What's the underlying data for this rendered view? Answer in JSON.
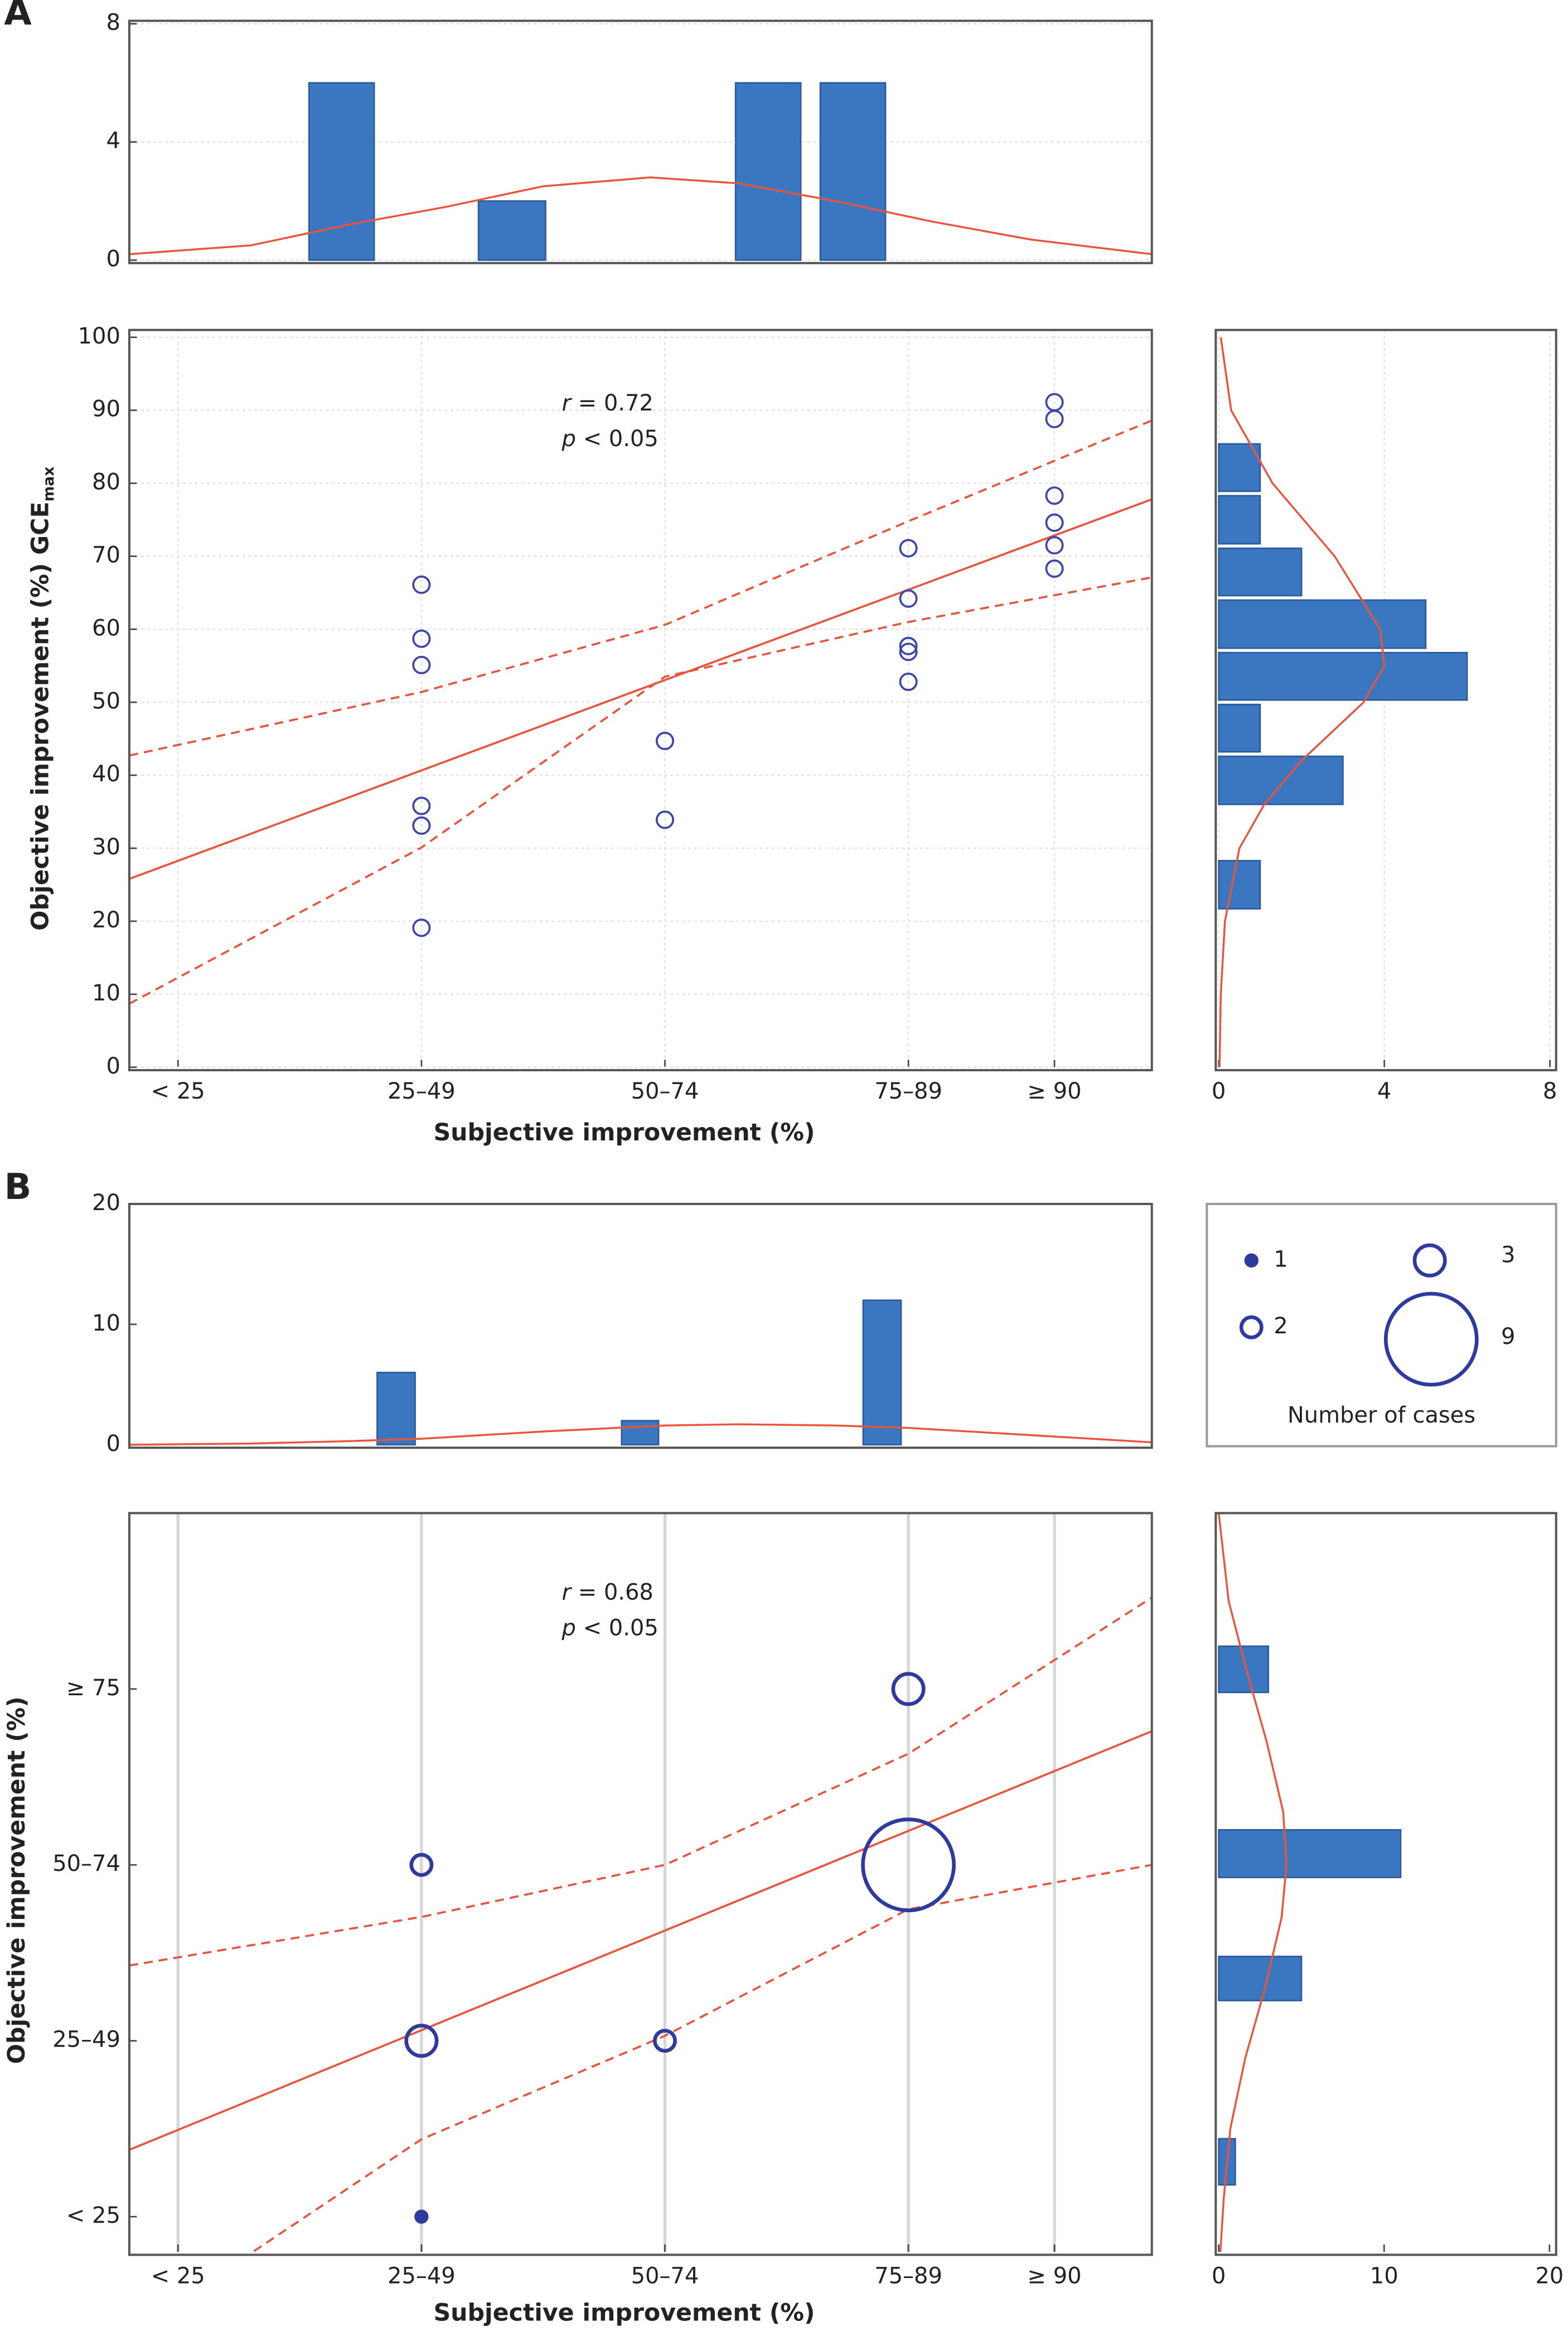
{
  "chart_data": [
    {
      "type": "histogram",
      "orientation": "vertical",
      "bins": [
        25.8,
        32.8,
        43.2,
        50.4,
        69.6,
        76.6,
        78.3,
        85.3
      ],
      "values": [
        6,
        0,
        2,
        0,
        6,
        0,
        6
      ],
      "color": "#3b76c0",
      "xlim": [
        7.5,
        112.5
      ],
      "ylim": [
        0,
        8.1
      ],
      "yticks": [
        0,
        4,
        8
      ],
      "grid": true,
      "curve": {
        "color": "#e8553f",
        "x": [
          7.5,
          20,
          30,
          40,
          50,
          61,
          70,
          80,
          90,
          100,
          112.5
        ],
        "y": [
          0.2,
          0.5,
          1.2,
          1.8,
          2.5,
          2.8,
          2.6,
          2.0,
          1.3,
          0.7,
          0.2
        ]
      }
    },
    {
      "type": "scatter",
      "panel": "A",
      "x_label": "Subjective improvement (%)",
      "y_label": "Objective improvement (%) GCE",
      "y_label_sub": "max",
      "annotations": [
        "r = 0.72",
        "p < 0.05"
      ],
      "xlim": [
        7.5,
        112.5
      ],
      "xticks": [
        {
          "value": 12.5,
          "label": "< 25"
        },
        {
          "value": 37.5,
          "label": "25–49"
        },
        {
          "value": 62.5,
          "label": "50–74"
        },
        {
          "value": 87.5,
          "label": "75–89"
        },
        {
          "value": 102.5,
          "label": "≥ 90"
        }
      ],
      "ylim": [
        0,
        101
      ],
      "yticks": [
        0,
        10,
        20,
        30,
        40,
        50,
        60,
        70,
        80,
        90,
        100
      ],
      "grid": true,
      "color": "#3d46a6",
      "x": [
        37.5,
        37.5,
        37.5,
        37.5,
        37.5,
        37.5,
        62.5,
        62.5,
        87.5,
        87.5,
        87.5,
        87.5,
        87.5,
        102.5,
        102.5,
        102.5,
        102.5,
        102.5,
        102.5
      ],
      "y": [
        66.1,
        58.7,
        55.1,
        35.8,
        33.1,
        19.1,
        44.7,
        33.9,
        71.1,
        64.2,
        57.7,
        56.9,
        52.8,
        91.1,
        88.8,
        78.3,
        74.6,
        71.5,
        68.3
      ],
      "line_color": "#e8553f",
      "lines": [
        {
          "style": "solid",
          "x": [
            7.5,
            112.5
          ],
          "y": [
            25.8,
            77.8
          ]
        },
        {
          "style": "dashed",
          "x": [
            7.5,
            37.5,
            62.5,
            87.5,
            112.5
          ],
          "y": [
            42.7,
            51.4,
            60.6,
            74.8,
            88.6
          ]
        },
        {
          "style": "dashed",
          "x": [
            7.5,
            37.5,
            62.5,
            87.5,
            112.5
          ],
          "y": [
            8.7,
            30.1,
            53.5,
            61.0,
            67.1
          ]
        }
      ]
    },
    {
      "type": "histogram",
      "orientation": "horizontal",
      "bins": [
        21.4,
        28.6,
        35.7,
        42.9,
        50,
        57.1,
        64.3,
        71.4,
        78.6,
        85.7
      ],
      "values": [
        1,
        0,
        3,
        1,
        6,
        5,
        2,
        1,
        1
      ],
      "color": "#3b76c0",
      "xlim": [
        0,
        8.15
      ],
      "xticks": [
        0,
        4,
        8
      ],
      "ylim": [
        0,
        101
      ],
      "grid": true,
      "curve": {
        "color": "#e8553f",
        "x": [
          0.02,
          0.05,
          0.15,
          0.5,
          1.1,
          2.0,
          3.5,
          4.0,
          3.9,
          2.8,
          1.3,
          0.3,
          0.05
        ],
        "y": [
          0,
          10,
          20,
          30,
          36,
          42,
          50,
          55,
          60,
          70,
          80,
          90,
          100
        ]
      }
    },
    {
      "type": "histogram",
      "orientation": "vertical",
      "bins": [
        32.8,
        37,
        57.9,
        62,
        82.7,
        86.9
      ],
      "values": [
        6,
        0,
        2,
        0,
        12
      ],
      "color": "#3b76c0",
      "xlim": [
        7.5,
        112.5
      ],
      "ylim": [
        0,
        20
      ],
      "yticks": [
        0,
        10,
        20
      ],
      "grid": false,
      "curve": {
        "color": "#e8553f",
        "x": [
          7.5,
          20,
          30,
          37.5,
          50,
          62.5,
          70,
          80,
          87.5,
          100,
          112.5
        ],
        "y": [
          0,
          0.1,
          0.3,
          0.5,
          1.1,
          1.6,
          1.7,
          1.6,
          1.4,
          0.8,
          0.2
        ]
      }
    },
    {
      "type": "scatter",
      "panel": "B",
      "x_label": "Subjective improvement (%)",
      "y_label": "Objective improvement (%)",
      "annotations": [
        "r = 0.68",
        "p < 0.05"
      ],
      "xlim": [
        7.5,
        112.5
      ],
      "xticks": [
        {
          "value": 12.5,
          "label": "< 25"
        },
        {
          "value": 37.5,
          "label": "25–49"
        },
        {
          "value": 62.5,
          "label": "50–74"
        },
        {
          "value": 87.5,
          "label": "75–89"
        },
        {
          "value": 102.5,
          "label": "≥ 90"
        }
      ],
      "ylim": [
        7.5,
        112.5
      ],
      "yticks": [
        {
          "value": 12.5,
          "label": "< 25"
        },
        {
          "value": 37.5,
          "label": "25–49"
        },
        {
          "value": 62.5,
          "label": "50–74"
        },
        {
          "value": 87.5,
          "label": "≥ 75"
        }
      ],
      "grid": "x",
      "color": "#2f3a9e",
      "x": [
        37.5,
        37.5,
        37.5,
        62.5,
        87.5,
        87.5
      ],
      "y": [
        12.5,
        37.5,
        62.5,
        37.5,
        62.5,
        87.5
      ],
      "sizes": [
        1,
        3,
        2,
        2,
        9,
        3
      ],
      "size_legend": {
        "title": "Number of cases",
        "values": [
          1,
          2,
          3,
          9
        ]
      },
      "line_color": "#e8553f",
      "lines": [
        {
          "style": "solid",
          "x": [
            7.5,
            112.5
          ],
          "y": [
            22.0,
            81.5
          ]
        },
        {
          "style": "dashed",
          "x": [
            7.5,
            37.5,
            62.5,
            87.5,
            112.5
          ],
          "y": [
            48.2,
            55.1,
            62.5,
            78.3,
            100.5
          ]
        },
        {
          "style": "dashed",
          "x": [
            20.3,
            37.5,
            62.5,
            87.5,
            112.5
          ],
          "y": [
            7.6,
            23.5,
            38.2,
            56.2,
            62.5
          ]
        }
      ]
    },
    {
      "type": "histogram",
      "orientation": "horizontal",
      "bins": [
        16.7,
        23.9,
        42.9,
        49.8,
        60.4,
        67.8,
        86.7,
        93.9
      ],
      "values": [
        1,
        0,
        5,
        0,
        11,
        0,
        3
      ],
      "color": "#3b76c0",
      "xlim": [
        0,
        20.4
      ],
      "xticks": [
        0,
        10,
        20
      ],
      "ylim": [
        7.5,
        112.5
      ],
      "grid": false,
      "curve": {
        "color": "#e8553f",
        "x": [
          0,
          0.6,
          1.7,
          2.9,
          3.9,
          4.1,
          3.8,
          2.8,
          1.6,
          0.7,
          0.3,
          0.1
        ],
        "y": [
          112.5,
          100,
          90,
          80,
          70,
          62.5,
          55,
          45,
          35,
          25,
          15,
          7.5
        ]
      }
    }
  ]
}
